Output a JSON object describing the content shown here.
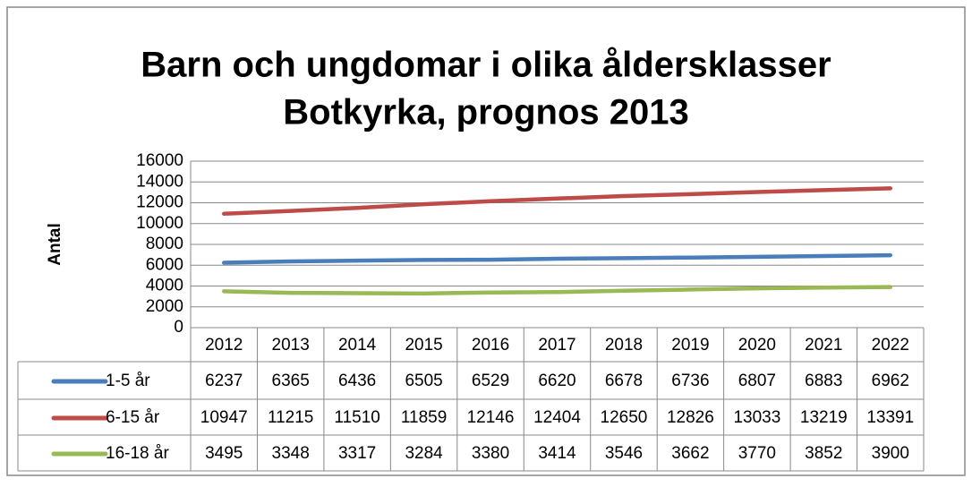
{
  "chart_data": {
    "type": "line",
    "title": [
      "Barn och ungdomar i olika åldersklasser",
      "Botkyrka, prognos 2013"
    ],
    "y_label": "Antal",
    "categories": [
      "2012",
      "2013",
      "2014",
      "2015",
      "2016",
      "2017",
      "2018",
      "2019",
      "2020",
      "2021",
      "2022"
    ],
    "series": [
      {
        "name": "1-5 år",
        "color": "#4a7ebb",
        "values": [
          6237,
          6365,
          6436,
          6505,
          6529,
          6620,
          6678,
          6736,
          6807,
          6883,
          6962
        ]
      },
      {
        "name": "6-15 år",
        "color": "#be4b48",
        "values": [
          10947,
          11215,
          11510,
          11859,
          12146,
          12404,
          12650,
          12826,
          13033,
          13219,
          13391
        ]
      },
      {
        "name": "16-18 år",
        "color": "#98b954",
        "values": [
          3495,
          3348,
          3317,
          3284,
          3380,
          3414,
          3546,
          3662,
          3770,
          3852,
          3900
        ]
      }
    ],
    "ylim": [
      0,
      16000
    ],
    "yticks": [
      0,
      2000,
      4000,
      6000,
      8000,
      10000,
      12000,
      14000,
      16000
    ],
    "grid": true
  }
}
